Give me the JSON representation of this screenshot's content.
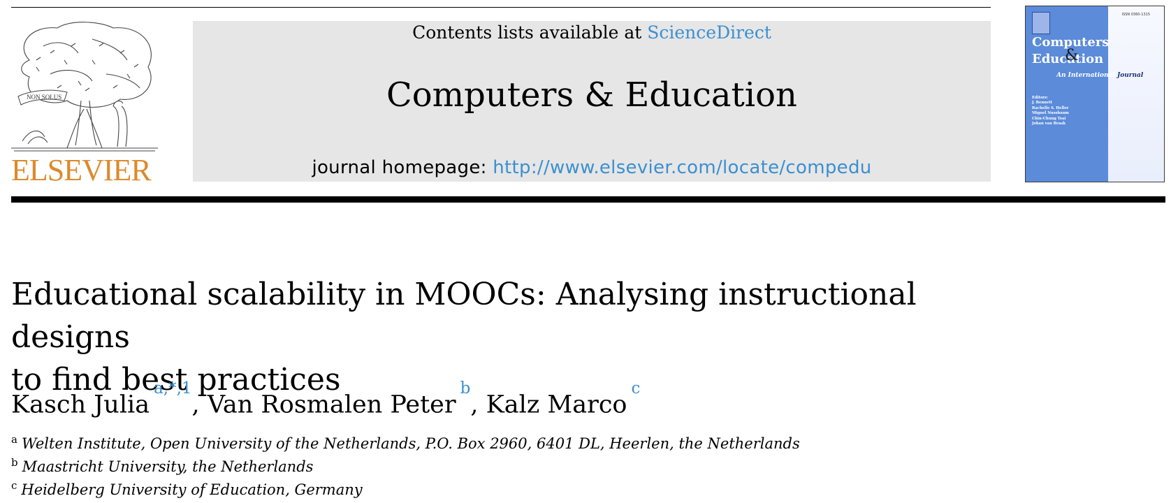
{
  "colors": {
    "accent": "#3b8fd0",
    "brand": "#dc8a2c",
    "cover": "#5b8bd9"
  },
  "publisher": {
    "logo_text": "ELSEVIER",
    "motto": "NON SOLUS"
  },
  "banner": {
    "contents_prefix": "Contents lists available at ",
    "contents_link": "ScienceDirect",
    "journal_title": "Computers & Education",
    "homepage_prefix": "journal homepage: ",
    "homepage_url": "http://www.elsevier.com/locate/compedu"
  },
  "cover": {
    "title_line1": "Computers",
    "title_amp": "&",
    "title_line2": "Education",
    "subtitle_a": "An International",
    "subtitle_b": "Journal",
    "editors_label": "Editors:",
    "editors": [
      "J. Bennett",
      "Rachelle S. Heller",
      "Miguel Nussbaum",
      "Chin-Chung Tsai",
      "Johan van Braak"
    ]
  },
  "article": {
    "title_line1": "Educational scalability in MOOCs: Analysing instructional designs",
    "title_line2": "to find best practices",
    "authors": [
      {
        "name": "Kasch Julia",
        "marks": "a,*,1"
      },
      {
        "name": "Van Rosmalen Peter",
        "marks": "b"
      },
      {
        "name": "Kalz Marco",
        "marks": "c"
      }
    ],
    "author_separator": ", ",
    "affiliations": [
      {
        "mark": "a",
        "text": "Welten Institute, Open University of the Netherlands, P.O. Box 2960, 6401 DL, Heerlen, the Netherlands"
      },
      {
        "mark": "b",
        "text": "Maastricht University, the Netherlands"
      },
      {
        "mark": "c",
        "text": "Heidelberg University of Education, Germany"
      }
    ]
  }
}
